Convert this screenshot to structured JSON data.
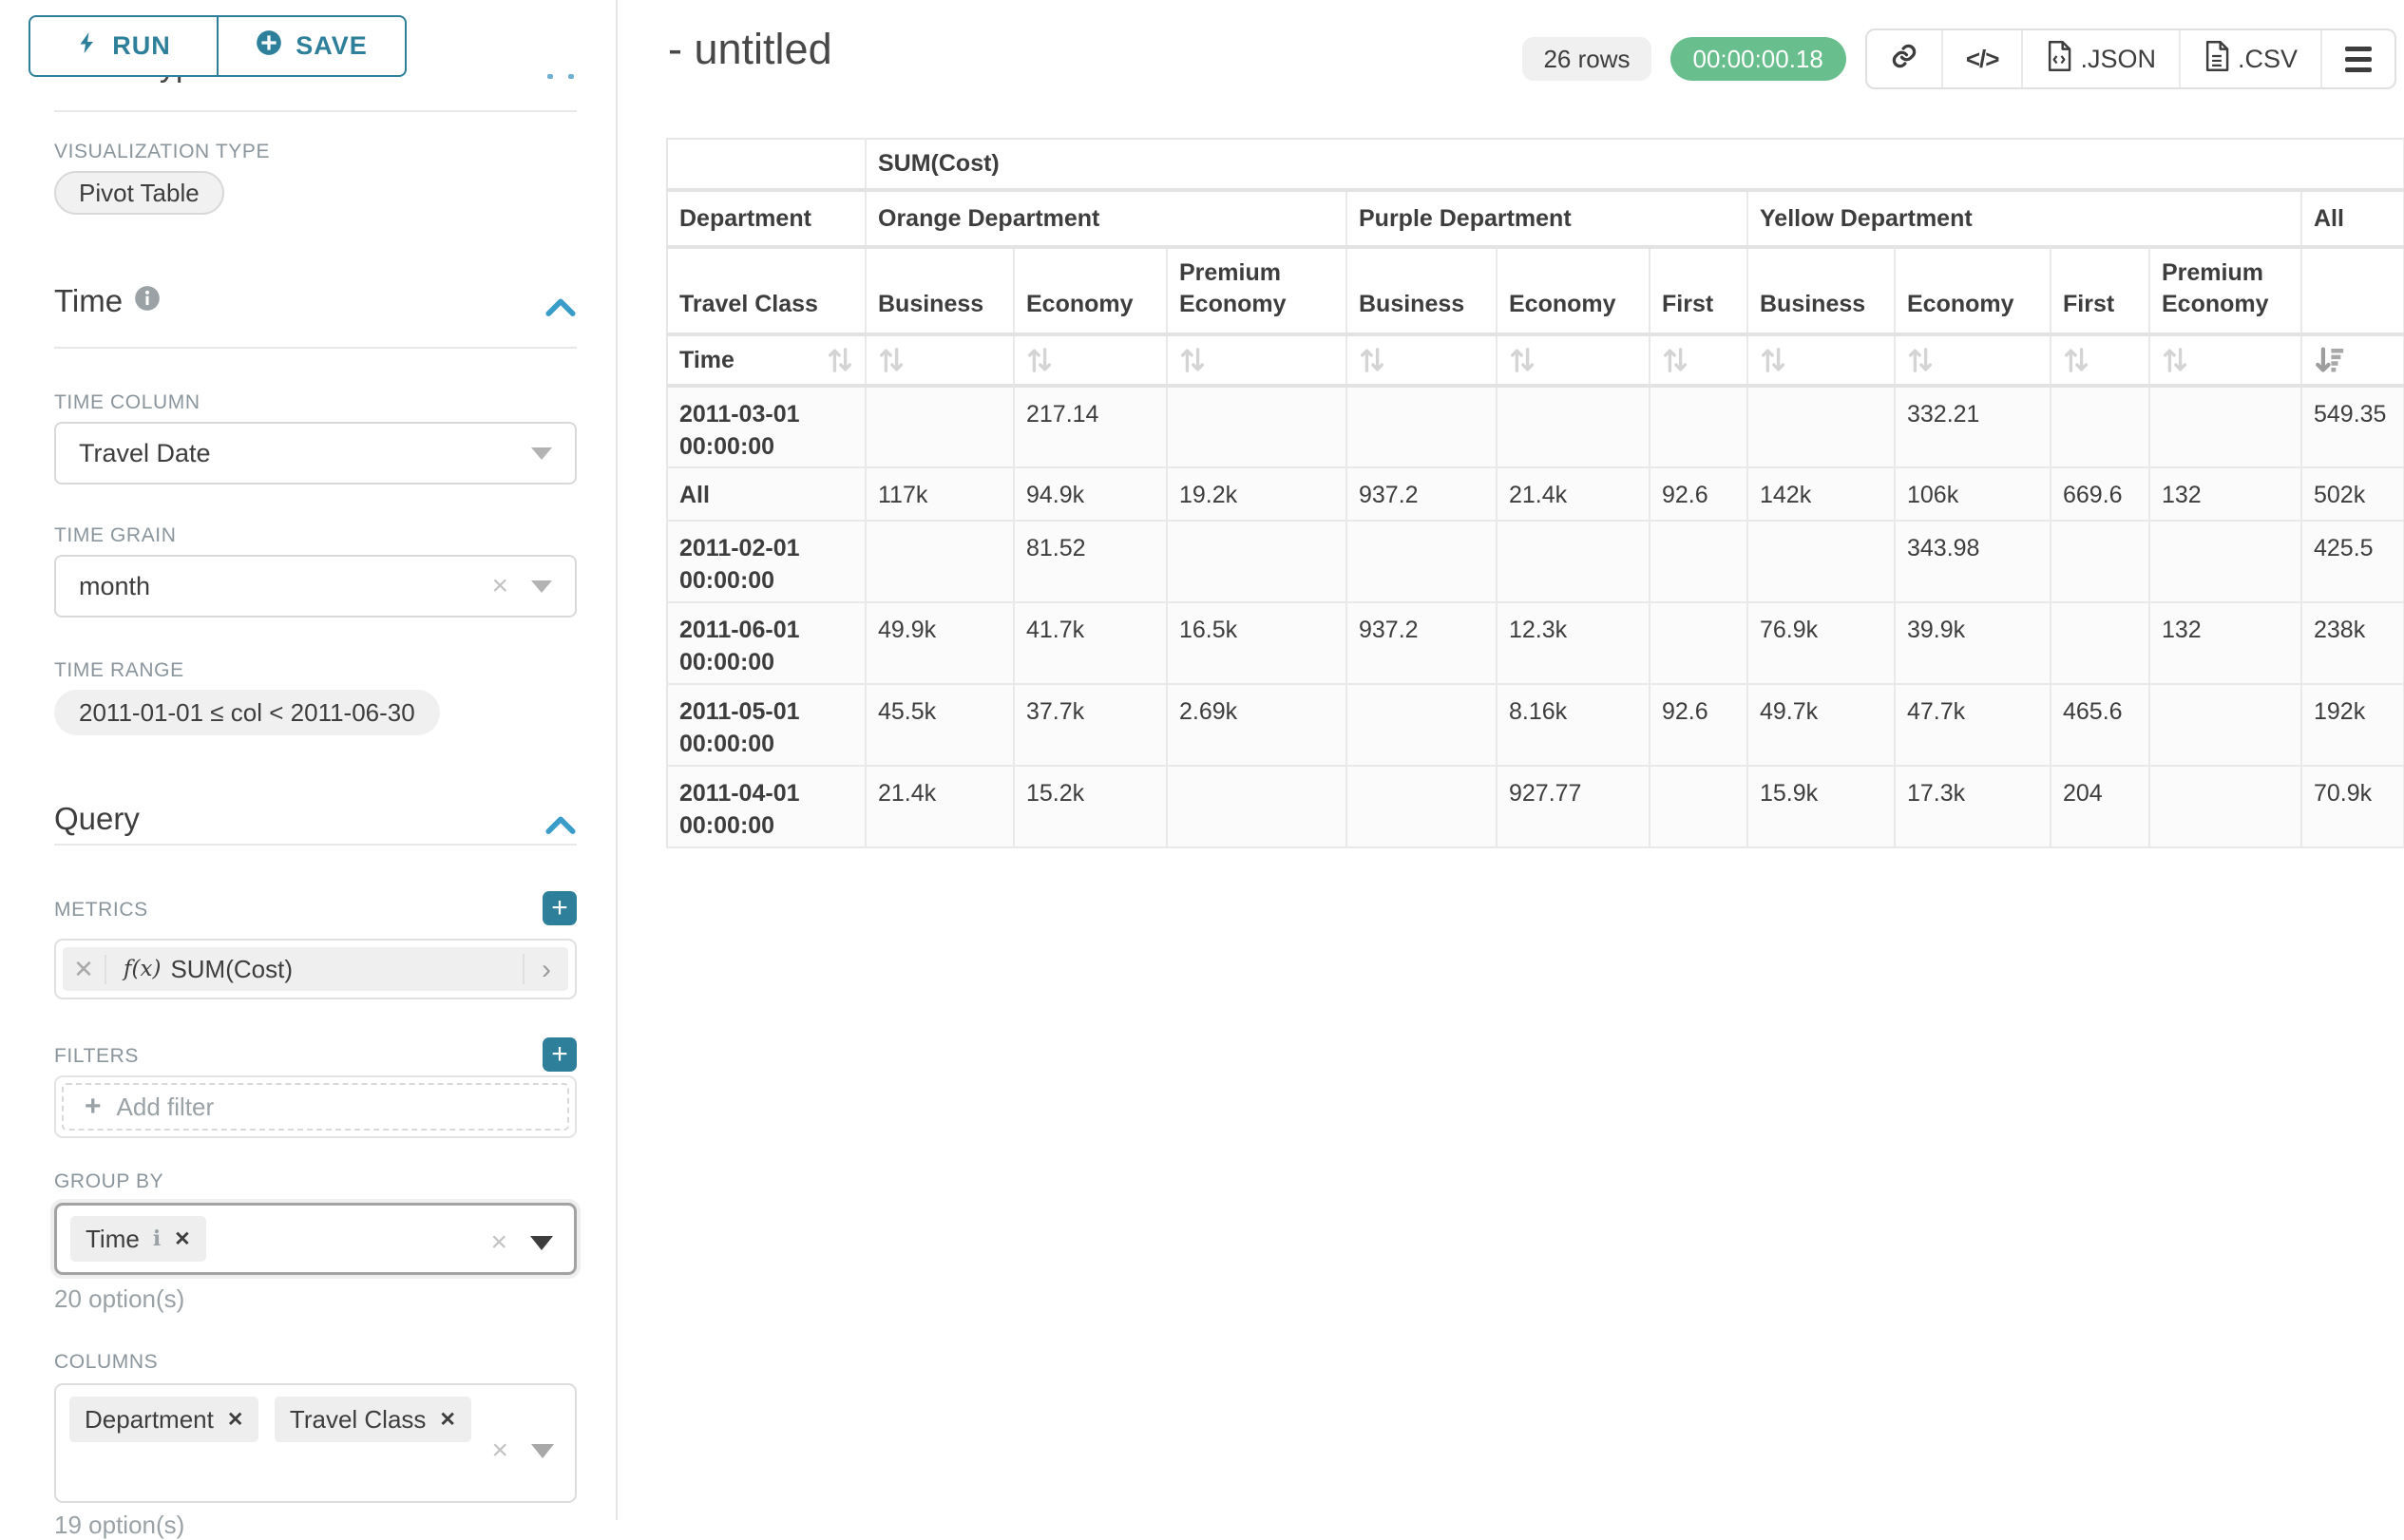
{
  "accent": "#2e7f9a",
  "sidebar": {
    "run_label": "RUN",
    "save_label": "SAVE",
    "chart_type_heading": "Chart Type",
    "visualization_type_label": "VISUALIZATION TYPE",
    "visualization_type_value": "Pivot Table",
    "time_section_label": "Time",
    "time_column_label": "TIME COLUMN",
    "time_column_value": "Travel Date",
    "time_grain_label": "TIME GRAIN",
    "time_grain_value": "month",
    "time_range_label": "TIME RANGE",
    "time_range_value": "2011-01-01 ≤ col < 2011-06-30",
    "query_section_label": "Query",
    "metrics_label": "METRICS",
    "metric_fx": "f(x)",
    "metric_value": "SUM(Cost)",
    "filters_label": "FILTERS",
    "add_filter_label": "Add filter",
    "group_by_label": "GROUP BY",
    "group_by_tag": "Time",
    "group_by_options": "20 option(s)",
    "columns_label": "COLUMNS",
    "columns_tag_1": "Department",
    "columns_tag_2": "Travel Class",
    "columns_options": "19 option(s)"
  },
  "header": {
    "title": "- untitled",
    "rows_badge": "26 rows",
    "timer": "00:00:00.18",
    "json_label": ".JSON",
    "csv_label": ".CSV"
  },
  "chart_data": {
    "type": "table",
    "metric_header": "SUM(Cost)",
    "row_dimension": "Time",
    "col_dimensions": [
      "Department",
      "Travel Class"
    ],
    "column_groups": [
      {
        "label": "Orange Department",
        "children": [
          "Business",
          "Economy",
          "Premium Economy"
        ]
      },
      {
        "label": "Purple Department",
        "children": [
          "Business",
          "Economy",
          "First"
        ]
      },
      {
        "label": "Yellow Department",
        "children": [
          "Business",
          "Economy",
          "First",
          "Premium Economy"
        ]
      },
      {
        "label": "All",
        "children": [
          ""
        ]
      }
    ],
    "rows": [
      {
        "label": "2011-03-01 00:00:00",
        "values": [
          "",
          "217.14",
          "",
          "",
          "",
          "",
          "",
          "332.21",
          "",
          "",
          "549.35"
        ]
      },
      {
        "label": "All",
        "values": [
          "117k",
          "94.9k",
          "19.2k",
          "937.2",
          "21.4k",
          "92.6",
          "142k",
          "106k",
          "669.6",
          "132",
          "502k"
        ]
      },
      {
        "label": "2011-02-01 00:00:00",
        "values": [
          "",
          "81.52",
          "",
          "",
          "",
          "",
          "",
          "343.98",
          "",
          "",
          "425.5"
        ]
      },
      {
        "label": "2011-06-01 00:00:00",
        "values": [
          "49.9k",
          "41.7k",
          "16.5k",
          "937.2",
          "12.3k",
          "",
          "76.9k",
          "39.9k",
          "",
          "132",
          "238k"
        ]
      },
      {
        "label": "2011-05-01 00:00:00",
        "values": [
          "45.5k",
          "37.7k",
          "2.69k",
          "",
          "8.16k",
          "92.6",
          "49.7k",
          "47.7k",
          "465.6",
          "",
          "192k"
        ]
      },
      {
        "label": "2011-04-01 00:00:00",
        "values": [
          "21.4k",
          "15.2k",
          "",
          "",
          "927.77",
          "",
          "15.9k",
          "17.3k",
          "204",
          "",
          "70.9k"
        ]
      }
    ]
  }
}
